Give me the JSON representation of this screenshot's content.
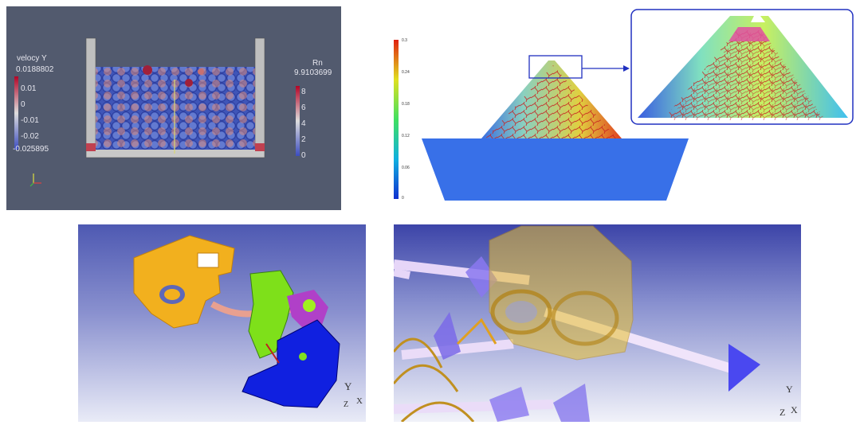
{
  "panel1": {
    "velocity_legend": {
      "title": "velocy Y",
      "max": "0.0188802",
      "ticks": [
        "0.01",
        "0",
        "-0.01",
        "-0.02"
      ],
      "min": "-0.025895"
    },
    "rn_legend": {
      "title": "Rn",
      "max": "9.9103699",
      "ticks": [
        "8",
        "6",
        "4",
        "2",
        "0"
      ]
    }
  },
  "panel2": {
    "colorbar_ticks": [
      "0.3",
      "0.24",
      "0.18",
      "0.12",
      "0.06",
      "0"
    ]
  },
  "panel3": {
    "axes": {
      "y": "Y",
      "z": "Z",
      "x": "X"
    }
  },
  "panel4": {
    "axes": {
      "y": "Y",
      "z": "Z",
      "x": "X"
    }
  }
}
